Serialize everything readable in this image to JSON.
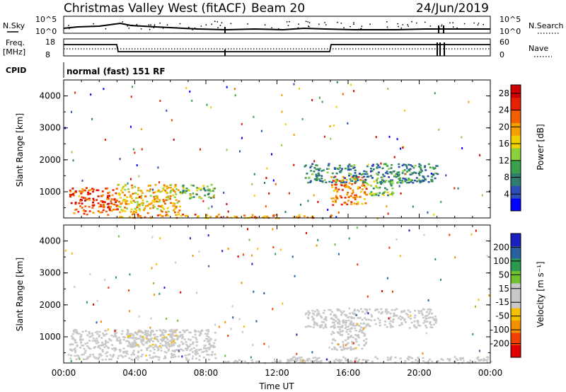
{
  "header": {
    "title": "Christmas Valley West (fitACF)",
    "beam": "Beam 20",
    "date": "24/Jun/2019"
  },
  "panels": {
    "nsky": {
      "label": "N.Sky",
      "tick_top": "10^5",
      "tick_bottom": "10^0"
    },
    "nsearch": {
      "label": "N.Search",
      "tick_top": "10^5",
      "tick_bottom": "10^0"
    },
    "freq": {
      "label_line1": "Freq.",
      "label_line2": "[MHz]",
      "tick_top": "18",
      "tick_bottom": "8"
    },
    "nave": {
      "label": "Nave",
      "tick_top": "60",
      "tick_bottom": "0"
    },
    "cpid": {
      "label": "CPID",
      "text": "normal (fast) 151 RF"
    }
  },
  "colors": {
    "power": [
      "#0000ff",
      "#2b4fb5",
      "#2e7d6f",
      "#3aa04a",
      "#8ad13c",
      "#f0d000",
      "#f5a000",
      "#f06000",
      "#e82000",
      "#d00000"
    ],
    "velocity": [
      "#e00000",
      "#f04000",
      "#f59000",
      "#f5c000",
      "#c8c8c8",
      "#c8c8c8",
      "#70c030",
      "#2a9a50",
      "#2a60a0",
      "#1a20c0"
    ]
  },
  "chart_data": [
    {
      "type": "heatmap",
      "name": "power",
      "ylabel": "Slant Range [km]",
      "yticks": [
        "1000",
        "2000",
        "3000",
        "4000"
      ],
      "ylim": [
        180,
        4500
      ],
      "xlim": [
        "00:00",
        "24:00"
      ],
      "colorbar": {
        "label": "Power [dB]",
        "ticks": [
          "4",
          "8",
          "12",
          "16",
          "20",
          "24",
          "28"
        ],
        "range": [
          0,
          30
        ]
      },
      "regions": [
        {
          "x": [
            0.3,
            3.0
          ],
          "y": [
            300,
            1150
          ],
          "level": 24
        },
        {
          "x": [
            3.0,
            6.5
          ],
          "y": [
            350,
            1250
          ],
          "level": 18
        },
        {
          "x": [
            6.5,
            8.5
          ],
          "y": [
            800,
            1250
          ],
          "level": 12
        },
        {
          "x": [
            3.0,
            9.0
          ],
          "y": [
            200,
            320
          ],
          "level": 20
        },
        {
          "x": [
            9.0,
            15.0
          ],
          "y": [
            200,
            300
          ],
          "level": 20
        },
        {
          "x": [
            15.0,
            17.0
          ],
          "y": [
            600,
            1500
          ],
          "level": 22
        },
        {
          "x": [
            13.5,
            21.0
          ],
          "y": [
            1300,
            1900
          ],
          "level": 8
        },
        {
          "x": [
            17.0,
            18.5
          ],
          "y": [
            900,
            1400
          ],
          "level": 12
        }
      ]
    },
    {
      "type": "heatmap",
      "name": "velocity",
      "ylabel": "Slant Range [km]",
      "yticks": [
        "1000",
        "2000",
        "3000",
        "4000"
      ],
      "ylim": [
        180,
        4500
      ],
      "xlim": [
        "00:00",
        "24:00"
      ],
      "xticks": [
        "00:00",
        "04:00",
        "08:00",
        "12:00",
        "16:00",
        "20:00",
        "00:00"
      ],
      "xlabel": "Time UT",
      "colorbar": {
        "label": "Velocity [m s⁻¹]",
        "ticks": [
          "-200",
          "-100",
          "-50",
          "-15",
          "15",
          "50",
          "100",
          "200"
        ],
        "range": [
          -250,
          250
        ]
      },
      "regions": [
        {
          "x": [
            0.3,
            8.5
          ],
          "y": [
            300,
            1250
          ],
          "value": 0
        },
        {
          "x": [
            3.5,
            6.5
          ],
          "y": [
            700,
            1250
          ],
          "value": -40
        },
        {
          "x": [
            9.0,
            15.0
          ],
          "y": [
            200,
            300
          ],
          "value": 30
        },
        {
          "x": [
            12.5,
            24.0
          ],
          "y": [
            200,
            400
          ],
          "value": 30
        },
        {
          "x": [
            15.0,
            17.0
          ],
          "y": [
            600,
            1500
          ],
          "value": 0
        },
        {
          "x": [
            13.5,
            21.0
          ],
          "y": [
            1300,
            1900
          ],
          "value": 0
        }
      ]
    }
  ]
}
